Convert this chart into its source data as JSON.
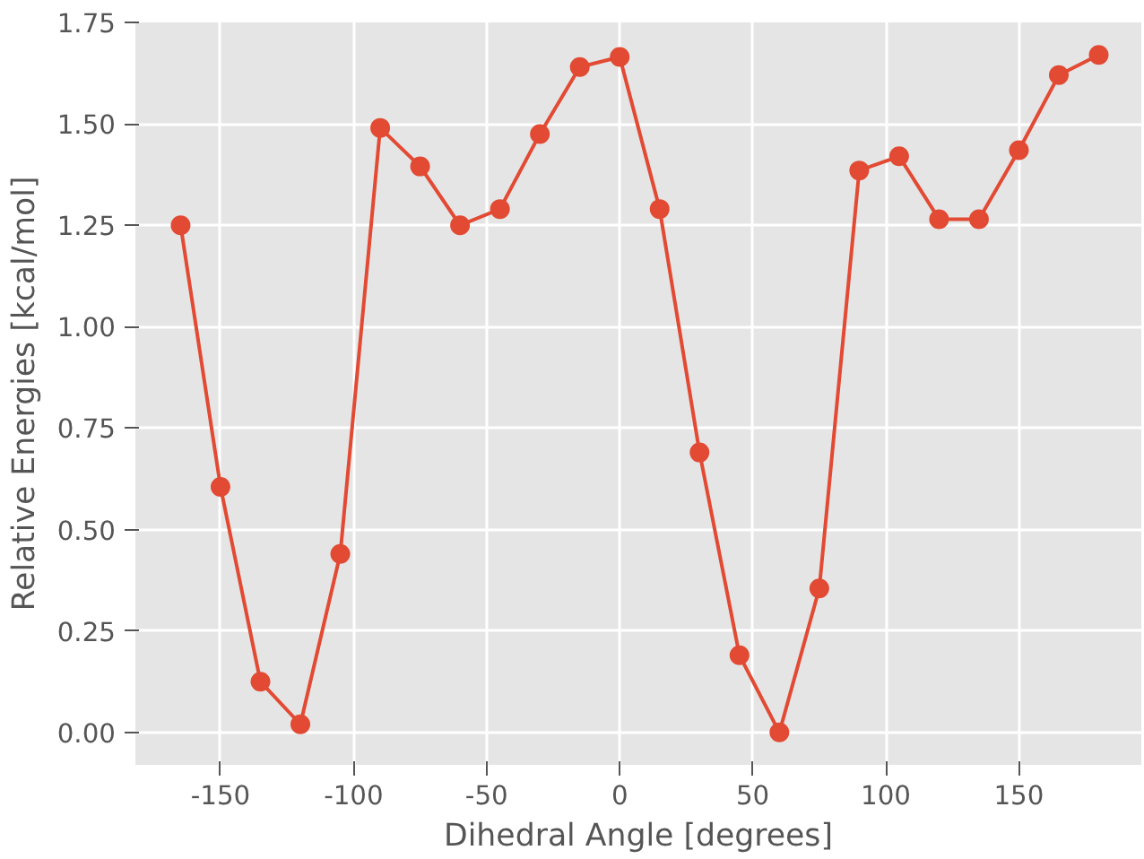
{
  "chart_data": {
    "type": "line",
    "xlabel": "Dihedral Angle [degrees]",
    "ylabel": "Relative Energies [kcal/mol]",
    "x": [
      -165,
      -150,
      -135,
      -120,
      -105,
      -90,
      -75,
      -60,
      -45,
      -30,
      -15,
      0,
      15,
      30,
      45,
      60,
      75,
      90,
      105,
      120,
      135,
      150,
      165,
      180
    ],
    "series": [
      {
        "color": "#e24a33",
        "values": [
          1.25,
          0.605,
          0.125,
          0.02,
          0.44,
          1.49,
          1.395,
          1.25,
          1.29,
          1.475,
          1.64,
          1.665,
          1.29,
          0.69,
          0.19,
          0.0,
          0.355,
          1.385,
          1.42,
          1.265,
          1.265,
          1.435,
          1.62,
          1.67
        ]
      }
    ],
    "xlim": [
      -182,
      196
    ],
    "ylim": [
      -0.08,
      1.75
    ],
    "xticks": [
      -150,
      -100,
      -50,
      0,
      50,
      100,
      150
    ],
    "yticks": [
      {
        "value": 0,
        "label": "0.00"
      },
      {
        "value": 0.25,
        "label": "0.25"
      },
      {
        "value": 0.5,
        "label": "0.50"
      },
      {
        "value": 0.75,
        "label": "0.75"
      },
      {
        "value": 1.0,
        "label": "1.00"
      },
      {
        "value": 1.25,
        "label": "1.25"
      },
      {
        "value": 1.5,
        "label": "1.50"
      },
      {
        "value": 1.75,
        "label": "1.75"
      }
    ],
    "grid": true,
    "marker": "circle",
    "line_style": "solid"
  }
}
